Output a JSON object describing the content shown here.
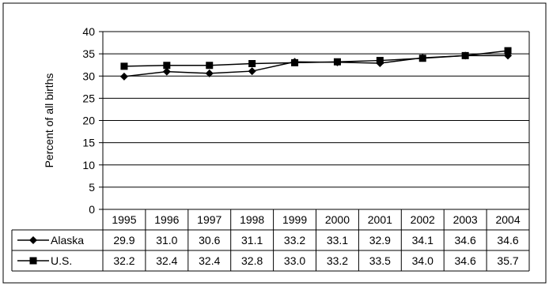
{
  "chart_data": {
    "type": "line",
    "title": "",
    "xlabel": "",
    "ylabel": "Percent of all births",
    "ylim": [
      0,
      40
    ],
    "y_ticks": [
      "0",
      "5",
      "10",
      "15",
      "20",
      "25",
      "30",
      "35",
      "40"
    ],
    "categories": [
      "1995",
      "1996",
      "1997",
      "1998",
      "1999",
      "2000",
      "2001",
      "2002",
      "2003",
      "2004"
    ],
    "grid": true,
    "legend_placement": "data-table-left",
    "series": [
      {
        "name": "Alaska",
        "marker": "diamond",
        "values": [
          29.9,
          31.0,
          30.6,
          31.1,
          33.2,
          33.1,
          32.9,
          34.1,
          34.6,
          34.6
        ],
        "labels": [
          "29.9",
          "31.0",
          "30.6",
          "31.1",
          "33.2",
          "33.1",
          "32.9",
          "34.1",
          "34.6",
          "34.6"
        ]
      },
      {
        "name": "U.S.",
        "marker": "square",
        "values": [
          32.2,
          32.4,
          32.4,
          32.8,
          33.0,
          33.2,
          33.5,
          34.0,
          34.6,
          35.7
        ],
        "labels": [
          "32.2",
          "32.4",
          "32.4",
          "32.8",
          "33.0",
          "33.2",
          "33.5",
          "34.0",
          "34.6",
          "35.7"
        ]
      }
    ]
  }
}
